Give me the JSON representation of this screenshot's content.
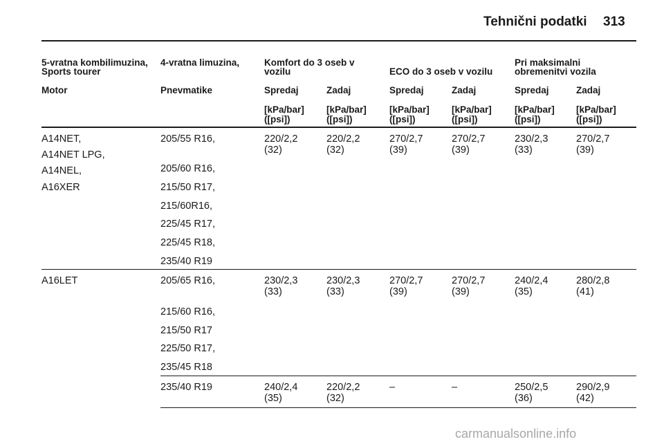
{
  "header": {
    "title": "Tehnični podatki",
    "page_number": "313"
  },
  "table": {
    "group_headers": {
      "body_types": [
        "5-vratna kombilimuzina,",
        "Sports tourer"
      ],
      "sedan": "4-vratna limuzina,",
      "comfort": [
        "Komfort do 3 oseb v",
        "vozilu"
      ],
      "eco": "ECO do 3 oseb v vozilu",
      "max_load": [
        "Pri maksimalni",
        "obremenitvi vozila"
      ]
    },
    "columns": [
      "Motor",
      "Pnevmatike",
      "Spredaj",
      "Zadaj",
      "Spredaj",
      "Zadaj",
      "Spredaj",
      "Zadaj"
    ],
    "unit": [
      "[kPa/bar]",
      "([psi])"
    ],
    "rows": [
      {
        "engines": [
          "A14NET,",
          "A14NET LPG,",
          "A14NEL,",
          "A16XER"
        ],
        "tyres": [
          "205/55 R16,",
          "205/60 R16,",
          "215/50 R17,",
          "215/60R16,",
          "225/45 R17,",
          "225/45 R18,",
          "235/40 R19"
        ],
        "values": [
          [
            "220/2,2",
            "(32)"
          ],
          [
            "220/2,2",
            "(32)"
          ],
          [
            "270/2,7",
            "(39)"
          ],
          [
            "270/2,7",
            "(39)"
          ],
          [
            "230/2,3",
            "(33)"
          ],
          [
            "270/2,7",
            "(39)"
          ]
        ]
      },
      {
        "engines": [
          "A16LET"
        ],
        "tyres": [
          "205/65 R16,",
          "215/60 R16,",
          "215/50 R17",
          "225/50 R17,",
          "235/45 R18"
        ],
        "values": [
          [
            "230/2,3",
            "(33)"
          ],
          [
            "230/2,3",
            "(33)"
          ],
          [
            "270/2,7",
            "(39)"
          ],
          [
            "270/2,7",
            "(39)"
          ],
          [
            "240/2,4",
            "(35)"
          ],
          [
            "280/2,8",
            "(41)"
          ]
        ]
      },
      {
        "engines": [],
        "tyres": [
          "235/40 R19"
        ],
        "values": [
          [
            "240/2,4",
            "(35)"
          ],
          [
            "220/2,2",
            "(32)"
          ],
          [
            "–",
            ""
          ],
          [
            "–",
            ""
          ],
          [
            "250/2,5",
            "(36)"
          ],
          [
            "290/2,9",
            "(42)"
          ]
        ]
      }
    ]
  },
  "footer": {
    "watermark": "carmanualsonline.info"
  }
}
